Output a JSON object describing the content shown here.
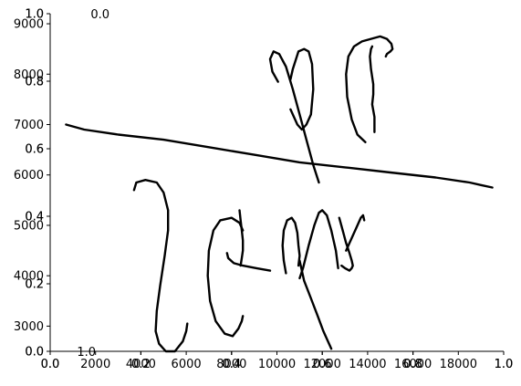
{
  "chart_data": {
    "type": "line",
    "title": "",
    "xlabel": "",
    "ylabel": "",
    "grid": false,
    "legend": "none",
    "layers": [
      {
        "name": "",
        "xlim": [
          0,
          20000
        ],
        "ylim": [
          2500,
          9200
        ],
        "x_ticks": [
          "2000",
          "4000",
          "6000",
          "8000",
          "10000",
          "12000",
          "14000",
          "16000",
          "18000"
        ],
        "x_tick_values": [
          2000,
          4000,
          6000,
          8000,
          10000,
          12000,
          14000,
          16000,
          18000
        ],
        "y_ticks": [
          "3000",
          "4000",
          "5000",
          "6000",
          "7000",
          "8000",
          "9000"
        ],
        "y_tick_values": [
          3000,
          4000,
          5000,
          6000,
          7000,
          8000,
          9000
        ]
      },
      {
        "name": "",
        "xlim": [
          0,
          1
        ],
        "ylim": [
          0,
          1
        ],
        "x_ticks": [
          "0.0",
          "0.2",
          "0.4",
          "0.6",
          "0.8",
          "1.0"
        ],
        "x_tick_values": [
          0,
          0.2,
          0.4,
          0.6,
          0.8,
          1.0
        ],
        "y_ticks": [
          "0.0",
          "0.2",
          "0.4",
          "0.6",
          "0.8",
          "1.0"
        ],
        "y_tick_values": [
          0,
          0.2,
          0.4,
          0.6,
          0.8,
          1.0
        ]
      },
      {
        "name": "",
        "xlim": [
          0,
          1
        ],
        "ylim": [
          0,
          1
        ],
        "x_ticks": [
          "0.0",
          "0.2",
          "0.4",
          "0.6",
          "0.8",
          "1.0"
        ],
        "x_tick_values": [
          0,
          0.2,
          0.4,
          0.6,
          0.8,
          1.0
        ],
        "y_ticks": [
          "0.0",
          "0.2",
          "0.4",
          "0.6",
          "0.8",
          "1.0"
        ],
        "y_tick_values": [
          0,
          0.2,
          0.4,
          0.6,
          0.8,
          1.0
        ]
      }
    ],
    "stray_labels": [
      {
        "text": "0.0",
        "x": 0.11,
        "y": 1.0
      },
      {
        "text": "1.0",
        "x": 0.08,
        "y": 0.0
      }
    ],
    "series": [
      {
        "name": "",
        "x": [
          700,
          1500,
          3000,
          5000,
          7000,
          9000,
          11000,
          13000,
          15000,
          17000,
          18500,
          19000,
          19500,
          19500
        ],
        "y": [
          7000,
          6900,
          6800,
          6700,
          6550,
          6400,
          6250,
          6150,
          6050,
          5950,
          5850,
          5800,
          5750,
          5750
        ]
      },
      {
        "name": "",
        "x": [
          10050,
          9800,
          9700,
          9850,
          10100,
          10400,
          10700,
          11000,
          11300,
          11600,
          11850
        ],
        "y": [
          7850,
          8050,
          8300,
          8450,
          8400,
          8150,
          7700,
          7200,
          6700,
          6200,
          5850
        ]
      },
      {
        "name": "",
        "x": [
          10600,
          10900,
          11100,
          11300,
          11500,
          11600,
          11550,
          11400,
          11200,
          10950,
          10700,
          10600
        ],
        "y": [
          7300,
          7000,
          6900,
          7000,
          7200,
          7700,
          8200,
          8450,
          8500,
          8450,
          8100,
          7900
        ]
      },
      {
        "name": "",
        "x": [
          14200,
          14150,
          14100,
          14150,
          14250,
          14250,
          14200,
          14300,
          14300
        ],
        "y": [
          8550,
          8500,
          8350,
          8100,
          7800,
          7600,
          7400,
          7150,
          6850
        ]
      },
      {
        "name": "",
        "x": [
          13900,
          13550,
          13300,
          13100,
          13050,
          13150,
          13400,
          13750,
          14150,
          14550,
          14850,
          15050,
          15100,
          15000,
          14850,
          14800
        ],
        "y": [
          6650,
          6800,
          7100,
          7550,
          8000,
          8350,
          8550,
          8650,
          8700,
          8750,
          8700,
          8600,
          8500,
          8450,
          8400,
          8350
        ]
      },
      {
        "name": "",
        "x": [
          3700,
          3800,
          4200,
          4700,
          5000,
          5200,
          5200,
          5050,
          4850,
          4700,
          4650,
          4800,
          5100,
          5500,
          5850,
          6000,
          6050
        ],
        "y": [
          5700,
          5850,
          5900,
          5850,
          5650,
          5300,
          4900,
          4400,
          3800,
          3300,
          2900,
          2650,
          2500,
          2500,
          2700,
          2900,
          3050
        ]
      },
      {
        "name": "",
        "x": [
          8500,
          8350,
          8000,
          7500,
          7200,
          7000,
          6950,
          7050,
          7300,
          7700,
          8050,
          8300,
          8450,
          8500
        ],
        "y": [
          4900,
          5050,
          5150,
          5100,
          4900,
          4500,
          4000,
          3500,
          3100,
          2850,
          2800,
          2950,
          3100,
          3200
        ]
      },
      {
        "name": "",
        "x": [
          8350,
          8400,
          8450,
          8500,
          8500,
          8450,
          8400
        ],
        "y": [
          5300,
          5100,
          4900,
          4700,
          4500,
          4350,
          4200
        ]
      },
      {
        "name": "",
        "x": [
          7800,
          7850,
          8100,
          8500,
          9100,
          9700
        ],
        "y": [
          4450,
          4350,
          4250,
          4200,
          4150,
          4100
        ]
      },
      {
        "name": "",
        "x": [
          10400,
          10300,
          10250,
          10300,
          10450,
          10650,
          10800,
          10900,
          10950,
          11000,
          10950
        ],
        "y": [
          4050,
          4300,
          4600,
          4900,
          5100,
          5150,
          5050,
          4850,
          4600,
          4400,
          4200
        ]
      },
      {
        "name": "",
        "x": [
          11000,
          11150,
          11400,
          11650,
          11850,
          12000,
          12200,
          12400,
          12600,
          12700
        ],
        "y": [
          3950,
          4150,
          4600,
          5000,
          5250,
          5300,
          5200,
          4900,
          4500,
          4150
        ]
      },
      {
        "name": "",
        "x": [
          11000,
          11200,
          11500,
          11800,
          12050,
          12250,
          12350,
          12400
        ],
        "y": [
          4300,
          3900,
          3550,
          3200,
          2900,
          2700,
          2600,
          2550
        ]
      },
      {
        "name": "",
        "x": [
          12750,
          12900,
          13050,
          13200,
          13300,
          13350,
          13300,
          13200,
          13000,
          12850
        ],
        "y": [
          5150,
          4900,
          4650,
          4450,
          4300,
          4200,
          4150,
          4100,
          4150,
          4200
        ]
      },
      {
        "name": "",
        "x": [
          13050,
          13250,
          13500,
          13700,
          13800,
          13850
        ],
        "y": [
          4500,
          4700,
          4950,
          5150,
          5200,
          5100
        ]
      }
    ]
  }
}
